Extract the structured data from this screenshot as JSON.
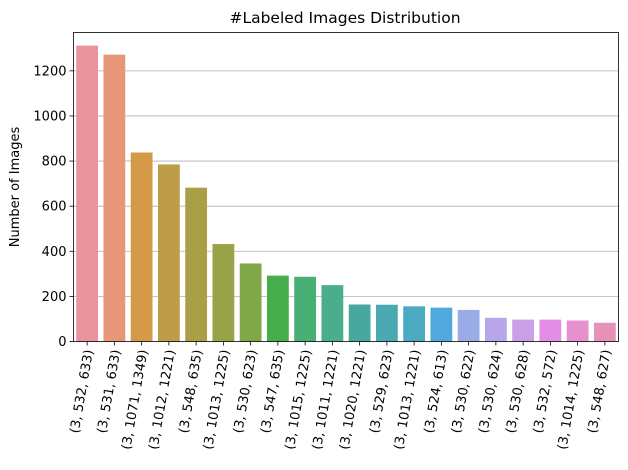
{
  "chart_data": {
    "type": "bar",
    "title": "#Labeled Images Distribution",
    "xlabel": "",
    "ylabel": "Number of Images",
    "ylim": [
      0,
      1370
    ],
    "yticks": [
      0,
      200,
      400,
      600,
      800,
      1000,
      1200
    ],
    "grid": "y",
    "categories": [
      "(3, 532, 633)",
      "(3, 531, 633)",
      "(3, 1071, 1349)",
      "(3, 1012, 1221)",
      "(3, 548, 635)",
      "(3, 1013, 1225)",
      "(3, 530, 623)",
      "(3, 547, 635)",
      "(3, 1015, 1225)",
      "(3, 1011, 1221)",
      "(3, 1020, 1221)",
      "(3, 529, 623)",
      "(3, 1013, 1221)",
      "(3, 524, 613)",
      "(3, 530, 622)",
      "(3, 530, 624)",
      "(3, 530, 628)",
      "(3, 532, 572)",
      "(3, 1014, 1225)",
      "(3, 548, 627)"
    ],
    "values": [
      1312,
      1272,
      838,
      785,
      682,
      432,
      346,
      292,
      287,
      250,
      164,
      163,
      156,
      150,
      140,
      105,
      97,
      97,
      93,
      83
    ],
    "colors": [
      "#e8939e",
      "#e8967a",
      "#d59a48",
      "#bd9d47",
      "#aa9e47",
      "#98a247",
      "#80a748",
      "#46ad4a",
      "#48b075",
      "#4aae8c",
      "#48a8a0",
      "#4ba9b1",
      "#4aaac2",
      "#50a8de",
      "#9aace6",
      "#b8a6ea",
      "#cb9ee8",
      "#e48de4",
      "#e690d0",
      "#e891b8"
    ]
  }
}
